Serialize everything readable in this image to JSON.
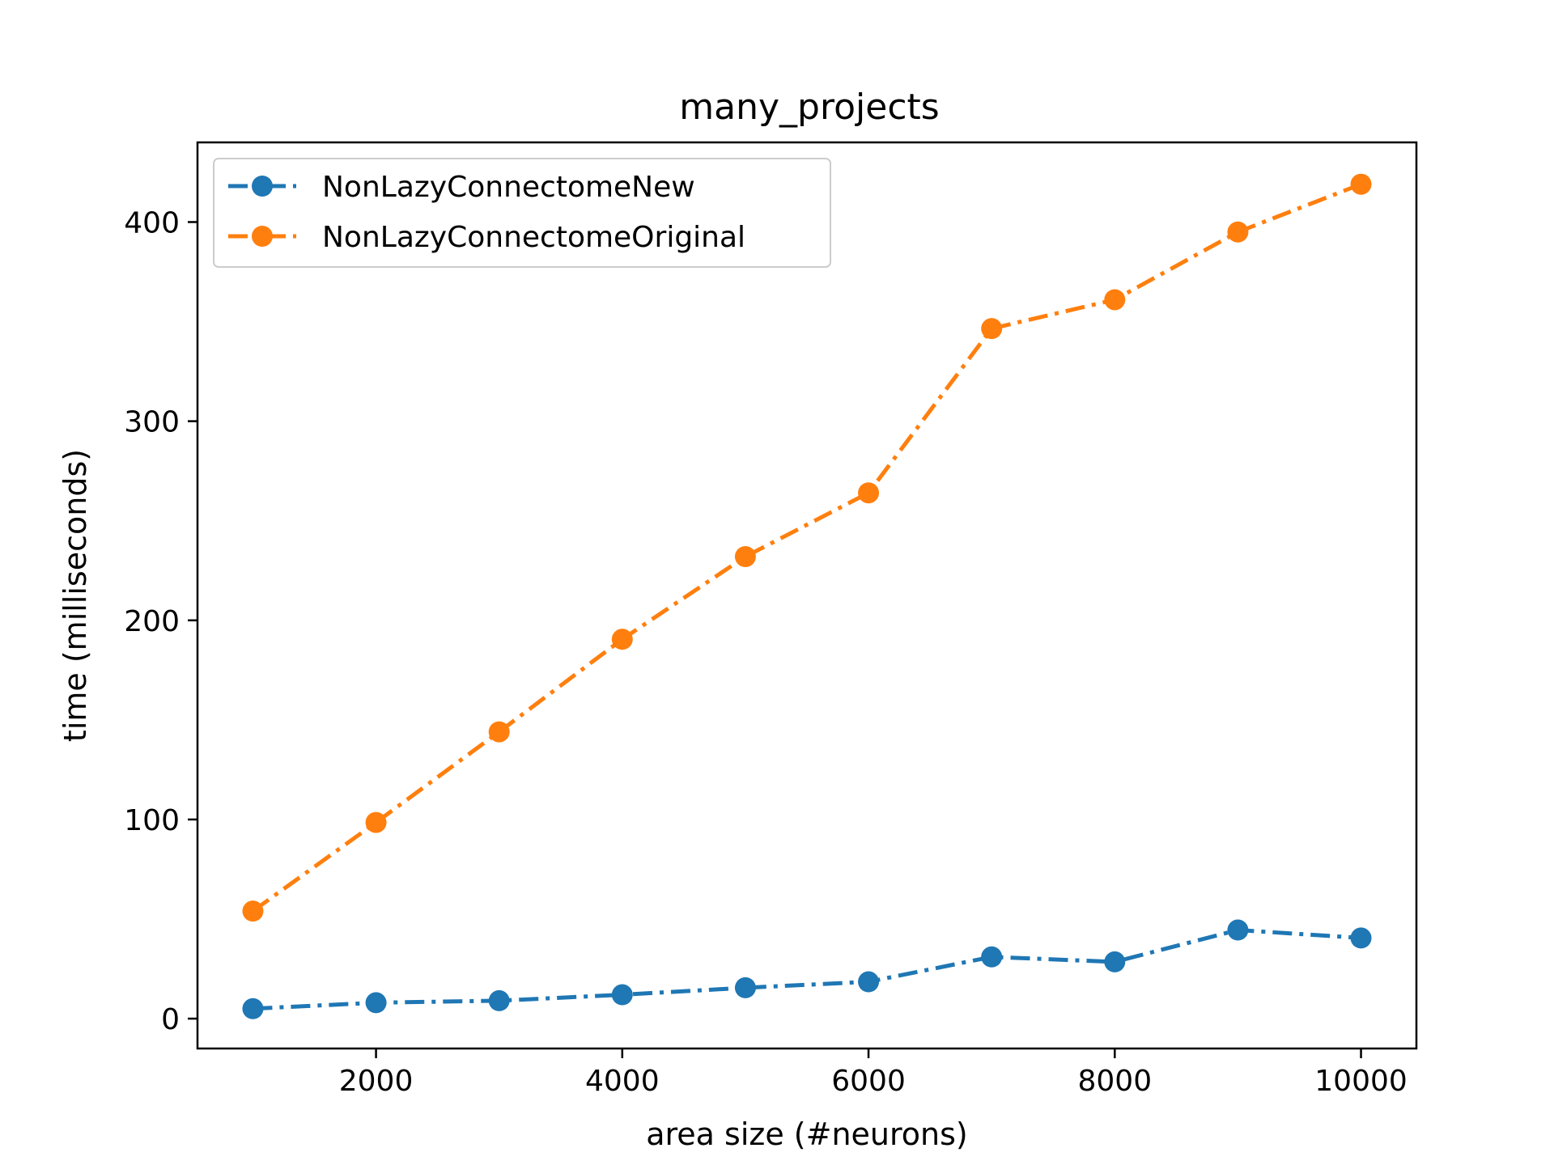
{
  "chart_data": {
    "type": "line",
    "title": "many_projects",
    "xlabel": "area size (#neurons)",
    "ylabel": "time (milliseconds)",
    "xlim": [
      550,
      10450
    ],
    "ylim": [
      -15,
      440
    ],
    "x_ticks": [
      2000,
      4000,
      6000,
      8000,
      10000
    ],
    "y_ticks": [
      0,
      100,
      200,
      300,
      400
    ],
    "x_tick_labels": [
      "2000",
      "4000",
      "6000",
      "8000",
      "10000"
    ],
    "y_tick_labels": [
      "0",
      "100",
      "200",
      "300",
      "400"
    ],
    "grid": false,
    "legend_position": "top-left",
    "line_style": "dash-dot",
    "marker": "circle",
    "x": [
      1000,
      2000,
      3000,
      4000,
      5000,
      6000,
      7000,
      8000,
      9000,
      10000
    ],
    "series": [
      {
        "name": "NonLazyConnectomeNew",
        "color": "#1f77b4",
        "values": [
          5,
          8,
          9,
          12,
          15.5,
          18.5,
          31,
          28.5,
          44.5,
          40.5
        ]
      },
      {
        "name": "NonLazyConnectomeOriginal",
        "color": "#ff7f0e",
        "values": [
          54,
          98.5,
          144,
          190.5,
          232,
          264,
          346.5,
          361,
          395,
          419
        ]
      }
    ]
  }
}
